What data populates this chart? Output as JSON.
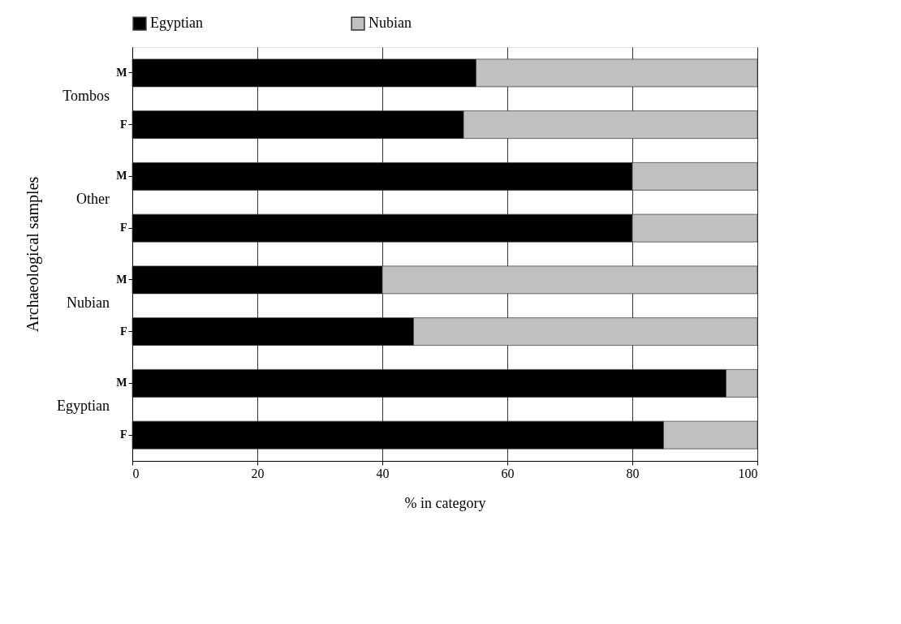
{
  "chart_data": {
    "type": "bar",
    "orientation": "horizontal",
    "stacked": true,
    "categories": [
      "M",
      "F",
      "M",
      "F",
      "M",
      "F",
      "M",
      "F"
    ],
    "series": [
      {
        "name": "Egyptian",
        "color": "#000000",
        "values": [
          55,
          53,
          80,
          80,
          40,
          45,
          95,
          85
        ]
      },
      {
        "name": "Nubian",
        "color": "#c0c0c0",
        "values": [
          45,
          47,
          20,
          20,
          60,
          55,
          5,
          15
        ]
      }
    ],
    "xlim": [
      0,
      100
    ],
    "xticks": [
      0,
      20,
      40,
      60,
      80,
      100
    ],
    "xlabel": "% in category",
    "ylabel": "Archaeological samples",
    "annotations": [
      "Tombos",
      "Other",
      "Nubian",
      "Egyptian"
    ],
    "grid": "x",
    "legend": "top"
  }
}
